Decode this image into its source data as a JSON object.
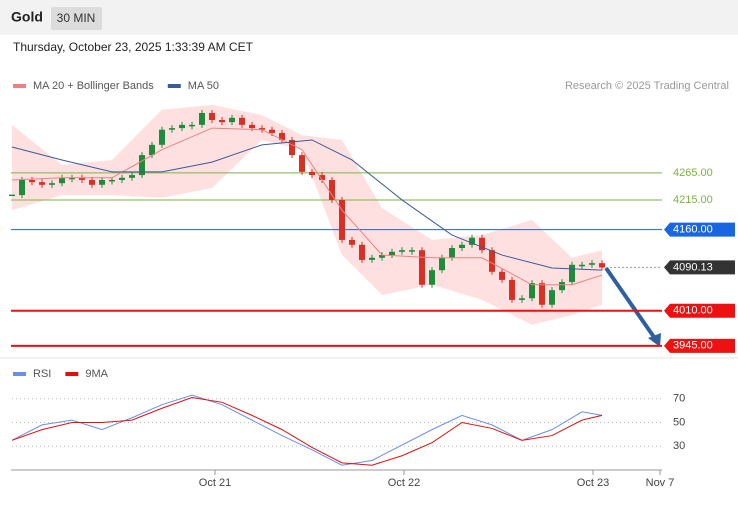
{
  "chart_data": [
    {
      "type": "candlestick",
      "title": "Gold",
      "timeframe": "30 MIN",
      "subtitle": "Thursday, October 23, 2025 1:33:39 AM CET",
      "source": "Research © 2025 Trading Central",
      "xlim": [
        0,
        65
      ],
      "ylim": [
        3928,
        4400
      ],
      "up_color": "#1e8c3a",
      "down_color": "#d93025",
      "close": [
        4224,
        4252,
        4248,
        4243,
        4246,
        4256,
        4256,
        4252,
        4243,
        4252,
        4252,
        4256,
        4261,
        4298,
        4317,
        4345,
        4348,
        4354,
        4354,
        4376,
        4363,
        4359,
        4367,
        4354,
        4348,
        4345,
        4339,
        4326,
        4298,
        4267,
        4261,
        4252,
        4215,
        4141,
        4132,
        4104,
        4108,
        4113,
        4119,
        4122,
        4122,
        4058,
        4085,
        4108,
        4126,
        4132,
        4145,
        4122,
        4082,
        4067,
        4030,
        4033,
        4061,
        4021,
        4048,
        4063,
        4095,
        4095,
        4098,
        4090
      ],
      "series": [
        {
          "name": "MA 20 + Bollinger Bands",
          "color": "#f08080",
          "band_color": "#ffd6d6",
          "x": [
            0,
            5,
            10,
            15,
            20,
            25,
            29,
            33,
            37,
            42,
            47,
            52,
            56,
            59
          ],
          "values": [
            4252,
            4256,
            4256,
            4308,
            4348,
            4345,
            4308,
            4196,
            4113,
            4108,
            4108,
            4058,
            4058,
            4076
          ],
          "upper": [
            4354,
            4280,
            4289,
            4382,
            4391,
            4372,
            4335,
            4326,
            4200,
            4141,
            4150,
            4178,
            4108,
            4122
          ],
          "lower": [
            4196,
            4224,
            4224,
            4219,
            4237,
            4326,
            4308,
            4113,
            4039,
            4058,
            4030,
            3984,
            4002,
            4021
          ]
        },
        {
          "name": "MA 50",
          "color": "#3a5a9a",
          "x": [
            0,
            5,
            10,
            15,
            20,
            25,
            30,
            34,
            39,
            44,
            49,
            54,
            59
          ],
          "values": [
            4313,
            4289,
            4267,
            4267,
            4285,
            4317,
            4326,
            4289,
            4215,
            4150,
            4113,
            4089,
            4085
          ]
        }
      ],
      "levels": [
        {
          "value": 4265,
          "label": "4265.00",
          "color": "#7cb342",
          "style": "text"
        },
        {
          "value": 4215,
          "label": "4215.00",
          "color": "#7cb342",
          "style": "text"
        },
        {
          "value": 4160,
          "label": "4160.00",
          "color": "#1a66e0",
          "style": "box"
        },
        {
          "value": 4090.13,
          "label": "4090.13",
          "color": "#333333",
          "style": "current"
        },
        {
          "value": 4010,
          "label": "4010.00",
          "color": "#ee1111",
          "style": "box"
        },
        {
          "value": 3945,
          "label": "3945.00",
          "color": "#ee1111",
          "style": "box"
        }
      ]
    },
    {
      "type": "line",
      "xlim": [
        0,
        65
      ],
      "ylim": [
        10,
        90
      ],
      "yticks": [
        70,
        50,
        30
      ],
      "xticks": [
        {
          "value": 20.3,
          "label": "Oct 21"
        },
        {
          "value": 39.2,
          "label": "Oct 22"
        },
        {
          "value": 58.1,
          "label": "Oct 23"
        },
        {
          "value": 64.8,
          "label": "Nov 7"
        }
      ],
      "series": [
        {
          "name": "RSI",
          "color": "#6b8ee8",
          "x": [
            0,
            3,
            6,
            9,
            12,
            15,
            18,
            21,
            24,
            27,
            30,
            33,
            36,
            39,
            42,
            45,
            48,
            51,
            54,
            57,
            59
          ],
          "values": [
            35,
            48,
            52,
            44,
            54,
            65,
            73,
            65,
            52,
            39,
            27,
            14,
            18,
            31,
            44,
            56,
            48,
            35,
            44,
            59,
            56
          ]
        },
        {
          "name": "9MA",
          "color": "#e01010",
          "x": [
            0,
            3,
            6,
            9,
            12,
            15,
            18,
            21,
            24,
            27,
            30,
            33,
            36,
            39,
            42,
            45,
            48,
            51,
            54,
            57,
            59
          ],
          "values": [
            35,
            44,
            50,
            50,
            52,
            62,
            71,
            67,
            56,
            44,
            29,
            16,
            14,
            22,
            33,
            50,
            45,
            35,
            39,
            52,
            56
          ]
        }
      ]
    }
  ]
}
